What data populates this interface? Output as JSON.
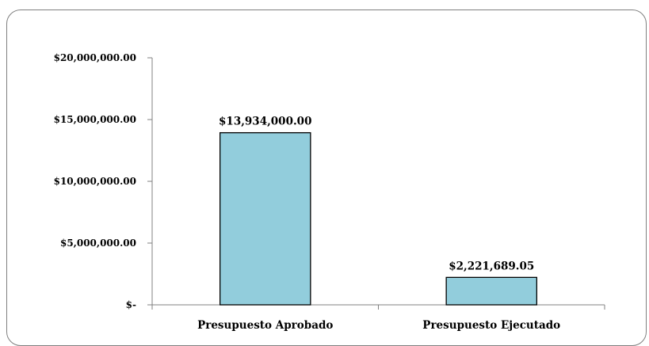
{
  "chart_data": {
    "type": "bar",
    "title": "",
    "xlabel": "",
    "ylabel": "",
    "categories": [
      "Presupuesto Aprobado",
      "Presupuesto Ejecutado"
    ],
    "values": [
      13934000.0,
      2221689.05
    ],
    "data_labels": [
      "$13,934,000.00",
      "$2,221,689.05"
    ],
    "ylim": [
      0,
      20000000
    ],
    "yticks": [
      0,
      5000000,
      10000000,
      15000000,
      20000000
    ],
    "ytick_labels": [
      "$-",
      "$5,000,000.00",
      "$10,000,000.00",
      "$15,000,000.00",
      "$20,000,000.00"
    ],
    "grid": false,
    "legend": "none",
    "colors": {
      "bar_fill": "#92cddc",
      "bar_stroke": "#000000",
      "axis": "#808080",
      "frame": "#7f7f7f"
    }
  }
}
